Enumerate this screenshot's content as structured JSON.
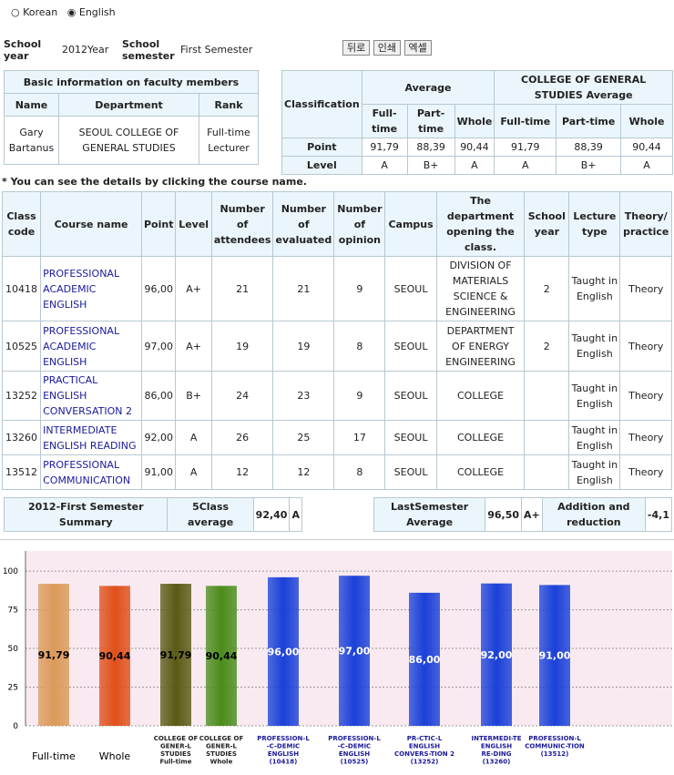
{
  "radios": {
    "options": [
      "Korean",
      "English"
    ]
  },
  "info": {
    "school_year_label": "School year",
    "school_year": "2012Year",
    "semester_label": "School semester",
    "semester": "First Semester"
  },
  "buttons": [
    "뒤로",
    "인쇄",
    "엑셀"
  ],
  "faculty": {
    "title": "Basic information on faculty members",
    "headers": [
      "Name",
      "Department",
      "Rank"
    ],
    "row": [
      "Gary Bartanus",
      "SEOUL COLLEGE OF GENERAL STUDIES",
      "Full-time Lecturer"
    ]
  },
  "averages": {
    "classification": "Classification",
    "average": "Average",
    "college_average": "COLLEGE OF GENERAL STUDIES Average",
    "subheaders": [
      "Full-time",
      "Part-time",
      "Whole",
      "Full-time",
      "Part-time",
      "Whole"
    ],
    "rows": [
      [
        "Point",
        "91,79",
        "88,39",
        "90,44",
        "91,79",
        "88,39",
        "90,44"
      ],
      [
        "Level",
        "A",
        "B+",
        "A",
        "A",
        "B+",
        "A"
      ]
    ]
  },
  "note": "* You can see the details by clicking the course name.",
  "courses": {
    "headers": [
      "Class code",
      "Course name",
      "Point",
      "Level",
      "Number of attendees",
      "Number of evaluated",
      "Number of opinion",
      "Campus",
      "The department opening the class.",
      "School year",
      "Lecture type",
      "Theory/ practice"
    ],
    "rows": [
      [
        "10418",
        "PROFESSIONAL ACADEMIC ENGLISH",
        "96,00",
        "A+",
        21,
        21,
        9,
        "SEOUL",
        "DIVISION OF MATERIALS SCIENCE & ENGINEERING",
        2,
        "Taught in English",
        "Theory"
      ],
      [
        "10525",
        "PROFESSIONAL ACADEMIC ENGLISH",
        "97,00",
        "A+",
        19,
        19,
        8,
        "SEOUL",
        "DEPARTMENT OF ENERGY ENGINEERING",
        2,
        "Taught in English",
        "Theory"
      ],
      [
        "13252",
        "PRACTICAL ENGLISH CONVERSATION 2",
        "86,00",
        "B+",
        24,
        23,
        9,
        "SEOUL",
        "COLLEGE",
        null,
        "Taught in English",
        "Theory"
      ],
      [
        "13260",
        "INTERMEDIATE ENGLISH READING",
        "92,00",
        "A",
        26,
        25,
        17,
        "SEOUL",
        "COLLEGE",
        null,
        "Taught in English",
        "Theory"
      ],
      [
        "13512",
        "PROFESSIONAL COMMUNICATION",
        "91,00",
        "A",
        12,
        12,
        8,
        "SEOUL",
        "COLLEGE",
        null,
        "Taught in English",
        "Theory"
      ]
    ]
  },
  "summary": {
    "left": [
      "2012-First Semester Summary",
      "5Class average",
      "92,40",
      "A"
    ],
    "right": [
      "LastSemester Average",
      "96,50",
      "A+",
      "Addition and reduction",
      "-4,1"
    ]
  },
  "chart_data": {
    "type": "bar",
    "categories": [
      [
        "Full-time"
      ],
      [
        "Whole"
      ],
      [
        "COLLEGE OF",
        "GENER-L",
        "STUDIES",
        "Full-time"
      ],
      [
        "COLLEGE OF",
        "GENER-L",
        "STUDIES",
        "Whole"
      ],
      [
        "PROFESSION-L",
        "-C-DEMIC",
        "ENGLISH",
        "(10418)"
      ],
      [
        "PROFESSION-L",
        "-C-DEMIC",
        "ENGLISH",
        "(10525)"
      ],
      [
        "PR-CTIC-L",
        "ENGLISH",
        "CONVERS-TION 2",
        "(13252)"
      ],
      [
        "INTERMEDI-TE",
        "ENGLISH",
        "RE-DING",
        "(13260)"
      ],
      [
        "PROFESSION-L",
        "COMMUNIC-TION",
        "(13512)"
      ]
    ],
    "values": [
      91.79,
      90.44,
      91.79,
      90.44,
      96,
      97,
      86,
      92,
      91
    ],
    "value_labels": [
      "91,79",
      "90,44",
      "91,79",
      "90,44",
      "96,00",
      "97,00",
      "86,00",
      "92,00",
      "91,00"
    ],
    "colors": [
      "#dc9a5a",
      "#e0501a",
      "#5a5a14",
      "#4a8c1a",
      "#1a40d8",
      "#1a40d8",
      "#1a40d8",
      "#1a40d8",
      "#1a40d8"
    ],
    "ylim": [
      0,
      113
    ],
    "yticks": [
      0,
      25,
      50,
      75,
      100
    ],
    "grid": true
  }
}
